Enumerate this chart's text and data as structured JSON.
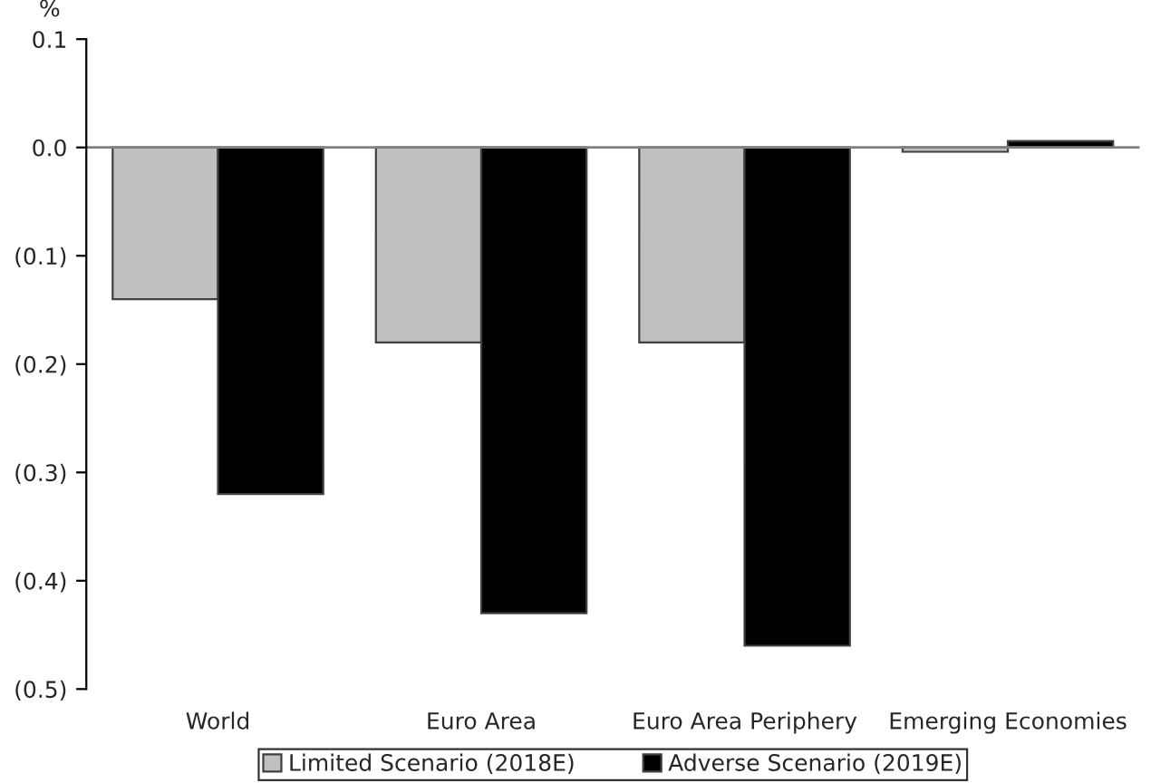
{
  "chart_data": {
    "type": "bar",
    "ylabel": "%",
    "categories": [
      "World",
      "Euro Area",
      "Euro Area Periphery",
      "Emerging Economies"
    ],
    "series": [
      {
        "name": "Limited Scenario (2018E)",
        "color": "#c0c0c0",
        "values": [
          -0.14,
          -0.18,
          -0.18,
          -0.004
        ]
      },
      {
        "name": "Adverse Scenario (2019E)",
        "color": "#000000",
        "values": [
          -0.32,
          -0.43,
          -0.46,
          0.006
        ]
      }
    ],
    "ylim": [
      -0.5,
      0.1
    ],
    "yticks": [
      {
        "value": -0.5,
        "label": "(0.5)"
      },
      {
        "value": -0.4,
        "label": "(0.4)"
      },
      {
        "value": -0.3,
        "label": "(0.3)"
      },
      {
        "value": -0.2,
        "label": "(0.2)"
      },
      {
        "value": -0.1,
        "label": "(0.1)"
      },
      {
        "value": 0,
        "label": "0.0"
      },
      {
        "value": 0.1,
        "label": "0.1"
      }
    ],
    "ref_lines": [
      {
        "axis": "y",
        "value": 0,
        "color": "#808080"
      }
    ],
    "legend": "bottom",
    "grid": false
  }
}
